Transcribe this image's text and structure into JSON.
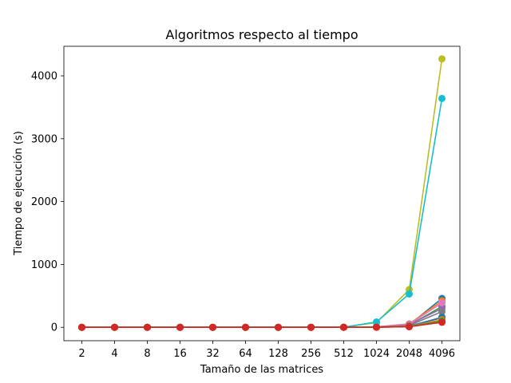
{
  "chart_data": {
    "type": "line",
    "title": "Algoritmos respecto al tiempo",
    "xlabel": "Tamaño de las matrices",
    "ylabel": "Tiempo de ejecución (s)",
    "categories": [
      "2",
      "4",
      "8",
      "16",
      "32",
      "64",
      "128",
      "256",
      "512",
      "1024",
      "2048",
      "4096"
    ],
    "yticks": [
      0,
      1000,
      2000,
      3000,
      4000
    ],
    "ylim": [
      -213,
      4470
    ],
    "grid": false,
    "legend": "none",
    "markers": "circle",
    "series": [
      {
        "color": "#1f77b4",
        "values": [
          0,
          0,
          0,
          0,
          0,
          0,
          0,
          0,
          1,
          5,
          40,
          460
        ]
      },
      {
        "color": "#ff7f0e",
        "values": [
          0,
          0,
          0,
          0,
          0,
          0,
          0,
          0,
          1,
          6,
          55,
          420
        ]
      },
      {
        "color": "#2ca02c",
        "values": [
          0,
          0,
          0,
          0,
          0,
          0,
          0,
          0,
          1,
          4,
          35,
          330
        ]
      },
      {
        "color": "#d62728",
        "values": [
          0,
          0,
          0,
          0,
          0,
          0,
          0,
          0,
          0,
          1,
          10,
          90
        ]
      },
      {
        "color": "#9467bd",
        "values": [
          0,
          0,
          0,
          0,
          0,
          0,
          0,
          0,
          1,
          5,
          45,
          300
        ]
      },
      {
        "color": "#8c564b",
        "values": [
          0,
          0,
          0,
          0,
          0,
          0,
          0,
          0,
          1,
          3,
          20,
          150
        ]
      },
      {
        "color": "#e377c2",
        "values": [
          0,
          0,
          0,
          0,
          0,
          0,
          0,
          0,
          1,
          6,
          50,
          390
        ]
      },
      {
        "color": "#7f7f7f",
        "values": [
          0,
          0,
          0,
          0,
          0,
          0,
          0,
          0,
          1,
          4,
          30,
          250
        ]
      },
      {
        "color": "#bcbd22",
        "values": [
          0,
          0,
          0,
          0,
          0,
          0,
          0,
          0,
          2,
          75,
          600,
          4270
        ]
      },
      {
        "color": "#17becf",
        "values": [
          0,
          0,
          0,
          0,
          0,
          0,
          0,
          0,
          2,
          85,
          530,
          3640
        ]
      },
      {
        "color": "#1f77b4",
        "values": [
          0,
          0,
          0,
          0,
          0,
          0,
          0,
          0,
          1,
          3,
          18,
          160
        ]
      },
      {
        "color": "#ff7f0e",
        "values": [
          0,
          0,
          0,
          0,
          0,
          0,
          0,
          0,
          1,
          2,
          15,
          120
        ]
      },
      {
        "color": "#2ca02c",
        "values": [
          0,
          0,
          0,
          0,
          0,
          0,
          0,
          0,
          0,
          2,
          12,
          100
        ]
      },
      {
        "color": "#d62728",
        "values": [
          0,
          0,
          0,
          0,
          0,
          0,
          0,
          0,
          0,
          1,
          10,
          80
        ]
      }
    ]
  }
}
